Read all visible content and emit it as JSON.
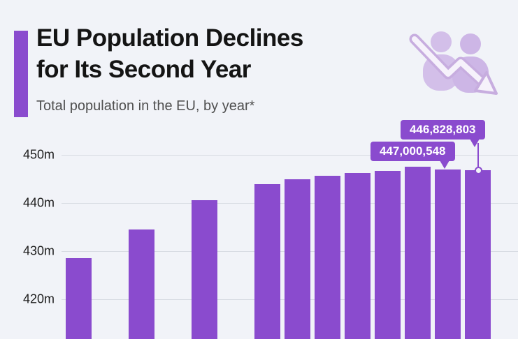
{
  "header": {
    "title_line1": "EU Population Declines",
    "title_line2": "for Its Second Year",
    "subtitle": "Total population in the EU, by year*",
    "icon": "people-decline-arrow-icon"
  },
  "chart_data": {
    "type": "bar",
    "title": "EU Population Declines for Its Second Year",
    "subtitle": "Total population in the EU, by year*",
    "xlabel": "",
    "ylabel": "",
    "unit": "million people",
    "categories": [
      "",
      "",
      "",
      "",
      "",
      "",
      "",
      "",
      "",
      "",
      ""
    ],
    "values": [
      428.6,
      434.5,
      440.6,
      443.9,
      445.0,
      445.7,
      446.3,
      446.6,
      447.5,
      447.0,
      446.8
    ],
    "yticks": [
      {
        "label": "450m",
        "value": 450
      },
      {
        "label": "440m",
        "value": 440
      },
      {
        "label": "430m",
        "value": 430
      },
      {
        "label": "420m",
        "value": 420
      }
    ],
    "ylim_visible": [
      417,
      452
    ],
    "grid": true,
    "legend": "none",
    "bar_color": "#8a4bce",
    "annotations": [
      {
        "text": "446,828,803",
        "bar_index": 10
      },
      {
        "text": "447,000,548",
        "bar_index": 9
      }
    ]
  },
  "colors": {
    "accent_purple": "#8a4bce",
    "icon_light_purple": "#d3bfe9",
    "background": "#f1f3f8",
    "gridline": "#d7dbe2",
    "title_text": "#141414",
    "subtitle_text": "#4f4f4f"
  }
}
